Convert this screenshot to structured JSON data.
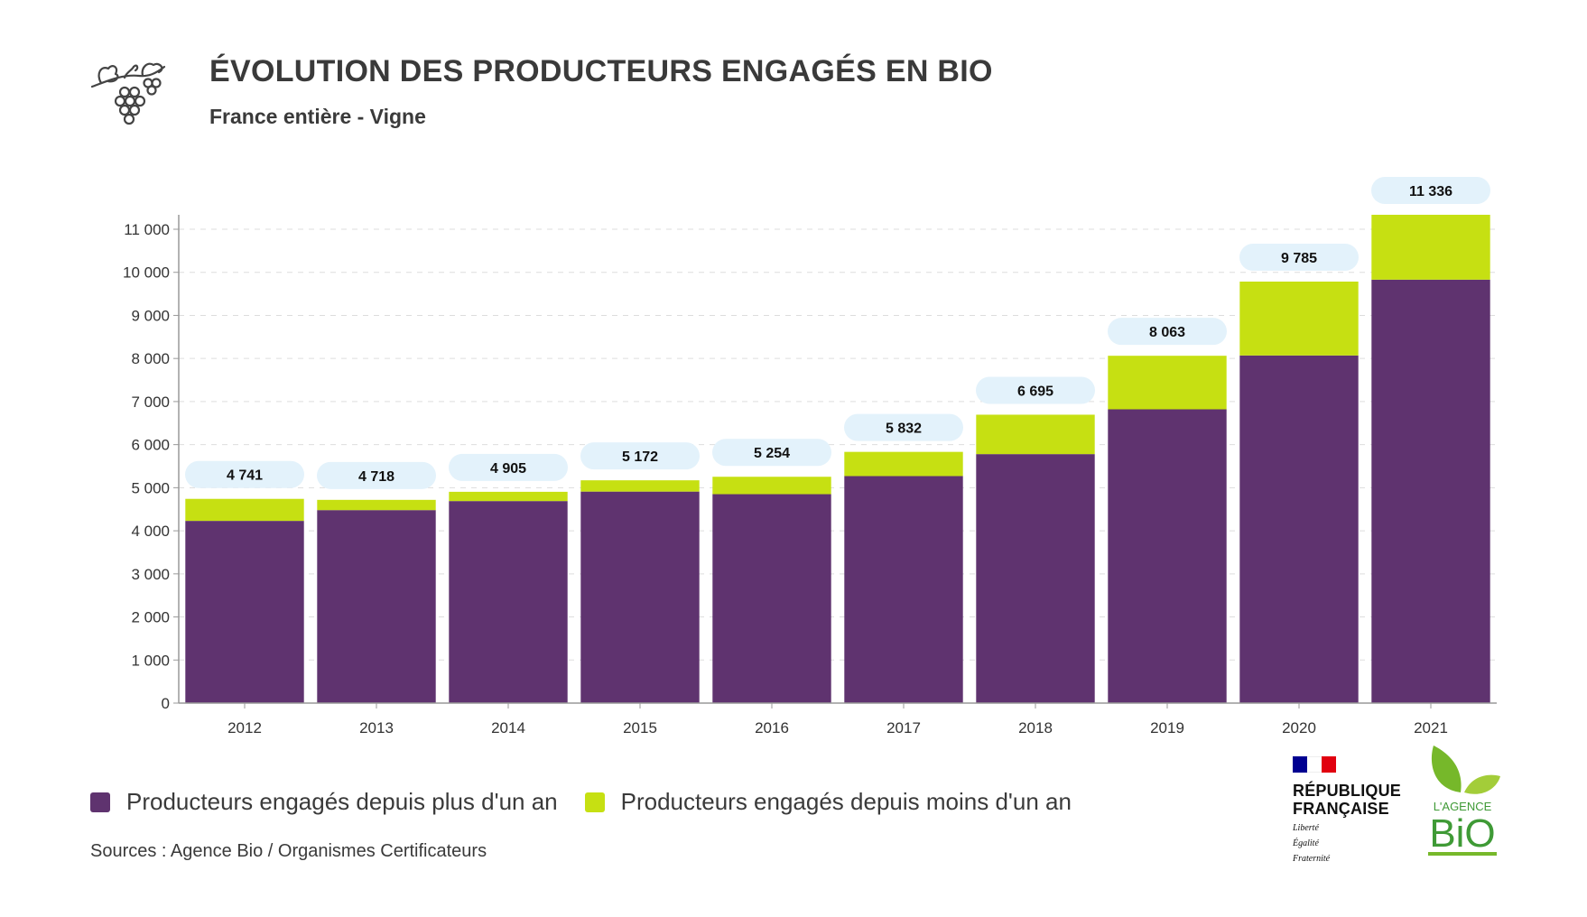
{
  "header": {
    "title": "ÉVOLUTION DES PRODUCTEURS ENGAGÉS EN BIO",
    "subtitle": "France entière - Vigne",
    "icon": "grape-vine-icon"
  },
  "colors": {
    "long_term": "#5f336f",
    "new": "#c6e012",
    "total_label_bg": "#e3f2fb",
    "axis": "#999999",
    "grid": "#dddddd"
  },
  "chart_data": {
    "type": "bar",
    "stacked": true,
    "categories": [
      "2012",
      "2013",
      "2014",
      "2015",
      "2016",
      "2017",
      "2018",
      "2019",
      "2020",
      "2021"
    ],
    "series": [
      {
        "name": "Producteurs engagés depuis plus d'un an",
        "values": [
          4230,
          4480,
          4690,
          4910,
          4850,
          5270,
          5780,
          6820,
          8070,
          9830
        ]
      },
      {
        "name": "Producteurs engagés depuis moins d'un an",
        "values": [
          511,
          238,
          215,
          262,
          404,
          562,
          915,
          1243,
          1715,
          1506
        ]
      }
    ],
    "totals": [
      4741,
      4718,
      4905,
      5172,
      5254,
      5832,
      6695,
      8063,
      9785,
      11336
    ],
    "total_labels": [
      "4 741",
      "4 718",
      "4 905",
      "5 172",
      "5 254",
      "5 832",
      "6 695",
      "8 063",
      "9 785",
      "11 336"
    ],
    "yticks": [
      0,
      1000,
      2000,
      3000,
      4000,
      5000,
      6000,
      7000,
      8000,
      9000,
      10000,
      11000
    ],
    "ytick_labels": [
      "0",
      "1 000",
      "2 000",
      "3 000",
      "4 000",
      "5 000",
      "6 000",
      "7 000",
      "8 000",
      "9 000",
      "10 000",
      "11 000"
    ],
    "ylim": [
      0,
      11400
    ],
    "grid": true,
    "legend": "bottom-left"
  },
  "legend": {
    "items": [
      {
        "label": "Producteurs engagés depuis plus d'un an"
      },
      {
        "label": "Producteurs engagés depuis moins d'un an"
      }
    ]
  },
  "footer": {
    "sources": "Sources : Agence Bio / Organismes Certificateurs"
  },
  "logos": {
    "republique": {
      "name_line1": "RÉPUBLIQUE",
      "name_line2": "FRANÇAISE",
      "motto1": "Liberté",
      "motto2": "Égalité",
      "motto3": "Fraternité"
    },
    "agence_bio": {
      "line1": "L'AGENCE",
      "line2": "BiO"
    }
  }
}
